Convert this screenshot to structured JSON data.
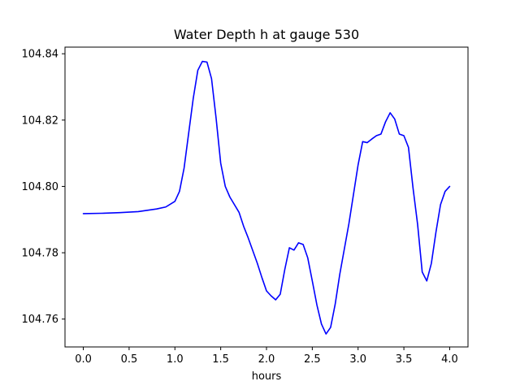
{
  "chart_data": {
    "type": "line",
    "title": "Water Depth h at gauge 530",
    "xlabel": "hours",
    "ylabel": "",
    "xlim": [
      -0.2,
      4.2
    ],
    "ylim": [
      104.7516,
      104.842
    ],
    "xticks": [
      0.0,
      0.5,
      1.0,
      1.5,
      2.0,
      2.5,
      3.0,
      3.5,
      4.0
    ],
    "xtick_labels": [
      "0.0",
      "0.5",
      "1.0",
      "1.5",
      "2.0",
      "2.5",
      "3.0",
      "3.5",
      "4.0"
    ],
    "yticks": [
      104.76,
      104.78,
      104.8,
      104.82,
      104.84
    ],
    "ytick_labels": [
      "104.76",
      "104.78",
      "104.80",
      "104.82",
      "104.84"
    ],
    "grid": false,
    "legend": "none",
    "series": [
      {
        "color": "#0000ff",
        "x": [
          0.0,
          0.2,
          0.4,
          0.6,
          0.7,
          0.8,
          0.9,
          1.0,
          1.05,
          1.1,
          1.15,
          1.2,
          1.25,
          1.3,
          1.35,
          1.4,
          1.45,
          1.5,
          1.55,
          1.6,
          1.7,
          1.75,
          1.8,
          1.9,
          1.95,
          2.0,
          2.05,
          2.1,
          2.15,
          2.2,
          2.25,
          2.3,
          2.35,
          2.4,
          2.45,
          2.5,
          2.55,
          2.6,
          2.65,
          2.7,
          2.75,
          2.8,
          2.9,
          3.0,
          3.05,
          3.1,
          3.15,
          3.2,
          3.25,
          3.3,
          3.35,
          3.4,
          3.45,
          3.5,
          3.55,
          3.6,
          3.65,
          3.7,
          3.75,
          3.8,
          3.85,
          3.9,
          3.95,
          4.0
        ],
        "y": [
          104.7918,
          104.7919,
          104.7921,
          104.7924,
          104.7928,
          104.7932,
          104.7938,
          104.7955,
          104.7985,
          104.8055,
          104.816,
          104.8265,
          104.835,
          104.8377,
          104.8375,
          104.8325,
          104.8205,
          104.807,
          104.8,
          104.7968,
          104.7922,
          104.788,
          104.7845,
          104.7768,
          104.7725,
          104.7685,
          104.767,
          104.7658,
          104.7675,
          104.775,
          104.7815,
          104.7808,
          104.783,
          104.7825,
          104.7785,
          104.7715,
          104.7643,
          104.7585,
          104.7555,
          104.7575,
          104.7645,
          104.7735,
          104.7888,
          104.8065,
          104.8135,
          104.8132,
          104.8143,
          104.8153,
          104.8158,
          104.8195,
          104.8222,
          104.8203,
          104.8158,
          104.8153,
          104.8118,
          104.7995,
          104.7885,
          104.7742,
          104.7715,
          104.7768,
          104.7862,
          104.7945,
          104.7985,
          104.8
        ]
      }
    ]
  }
}
